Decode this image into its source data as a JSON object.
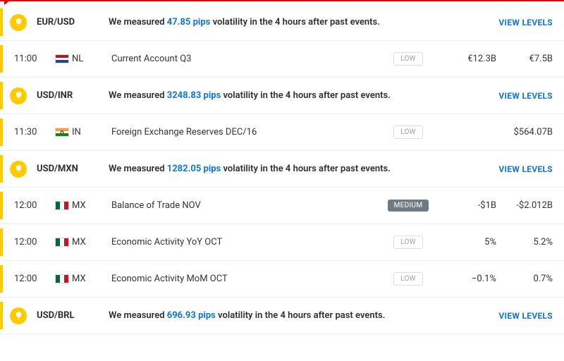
{
  "colors": {
    "accent_bar": "#ffca00",
    "top_line": "#e30613",
    "link": "#0f77d9",
    "impact_low_text": "#9aa1a8",
    "impact_medium_bg": "#6e7b85",
    "border": "#eceff1"
  },
  "strings": {
    "view_levels": "VIEW LEVELS",
    "vol_prefix": "We measured ",
    "vol_suffix": " volatility in the 4 hours after past events.",
    "pips_unit": " pips"
  },
  "rows": [
    {
      "type": "pair",
      "pair": "EUR/USD",
      "pips": "47.85"
    },
    {
      "type": "event",
      "time": "11:00",
      "flag": "nl",
      "cc": "NL",
      "event": "Current Account Q3",
      "impact": "LOW",
      "forecast": "€12.3B",
      "previous": "€7.5B"
    },
    {
      "type": "pair",
      "pair": "USD/INR",
      "pips": "3248.83"
    },
    {
      "type": "event",
      "time": "11:30",
      "flag": "in",
      "cc": "IN",
      "event": "Foreign Exchange Reserves DEC/16",
      "impact": "LOW",
      "forecast": "",
      "previous": "$564.07B"
    },
    {
      "type": "pair",
      "pair": "USD/MXN",
      "pips": "1282.05"
    },
    {
      "type": "event",
      "time": "12:00",
      "flag": "mx",
      "cc": "MX",
      "event": "Balance of Trade NOV",
      "impact": "MEDIUM",
      "forecast": "-$1B",
      "previous": "-$2.012B"
    },
    {
      "type": "event",
      "time": "12:00",
      "flag": "mx",
      "cc": "MX",
      "event": "Economic Activity YoY OCT",
      "impact": "LOW",
      "forecast": "5%",
      "previous": "5.2%"
    },
    {
      "type": "event",
      "time": "12:00",
      "flag": "mx",
      "cc": "MX",
      "event": "Economic Activity MoM OCT",
      "impact": "LOW",
      "forecast": "−0.1%",
      "previous": "0.7%"
    },
    {
      "type": "pair",
      "pair": "USD/BRL",
      "pips": "696.93"
    }
  ]
}
